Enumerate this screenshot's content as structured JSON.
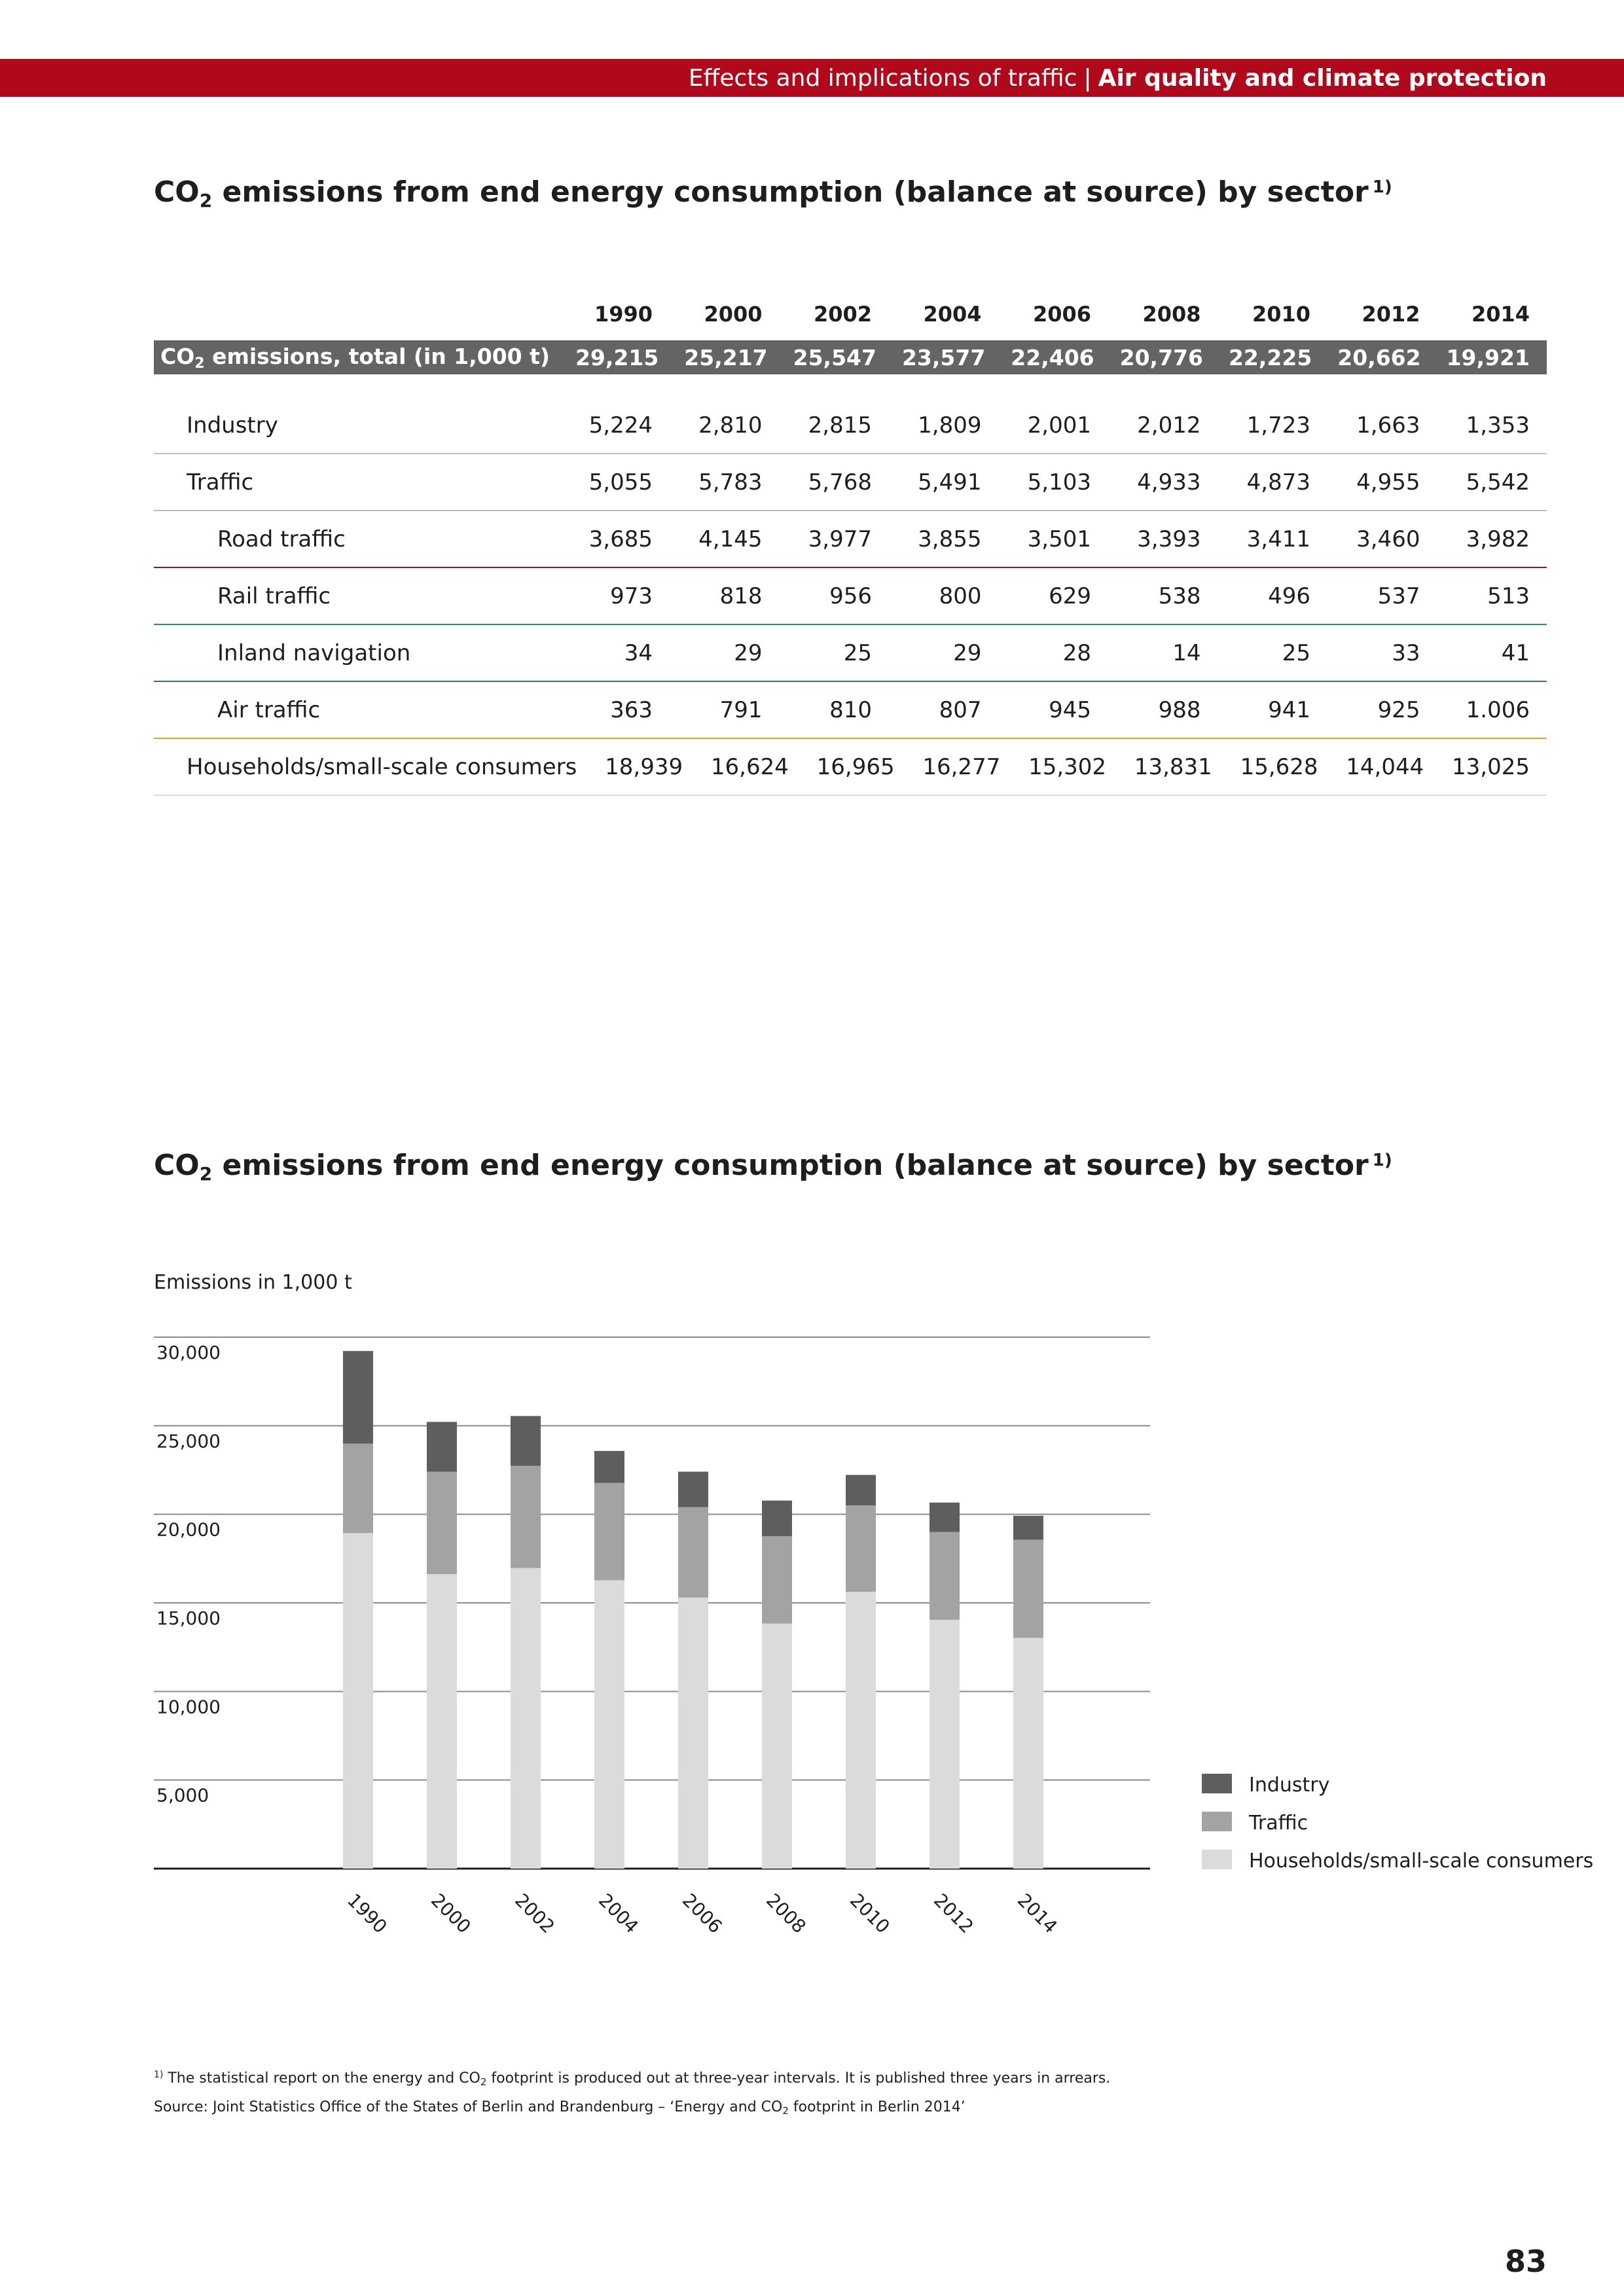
{
  "header": {
    "section": "Effects and implications of traffic",
    "separator": "|",
    "subsection": "Air quality and climate protection"
  },
  "table_section": {
    "title_pre": "CO",
    "title_sub": "2",
    "title_post": " emissions from end energy consumption (balance at source) by sector",
    "title_note": "1)",
    "years": [
      "1990",
      "2000",
      "2002",
      "2004",
      "2006",
      "2008",
      "2010",
      "2012",
      "2014"
    ],
    "total": {
      "label_pre": "CO",
      "label_sub": "2",
      "label_post": " emissions, total (in 1,000 t)",
      "values": [
        "29,215",
        "25,217",
        "25,547",
        "23,577",
        "22,406",
        "20,776",
        "22,225",
        "20,662",
        "19,921"
      ]
    },
    "rows": [
      {
        "label": "Industry",
        "values": [
          "5,224",
          "2,810",
          "2,815",
          "1,809",
          "2,001",
          "2,012",
          "1,723",
          "1,663",
          "1,353"
        ]
      },
      {
        "label": "Traffic",
        "values": [
          "5,055",
          "5,783",
          "5,768",
          "5,491",
          "5,103",
          "4,933",
          "4,873",
          "4,955",
          "5,542"
        ]
      },
      {
        "label": "Road traffic",
        "values": [
          "3,685",
          "4,145",
          "3,977",
          "3,855",
          "3,501",
          "3,393",
          "3,411",
          "3,460",
          "3,982"
        ]
      },
      {
        "label": "Rail traffic",
        "values": [
          "973",
          "818",
          "956",
          "800",
          "629",
          "538",
          "496",
          "537",
          "513"
        ]
      },
      {
        "label": "Inland navigation",
        "values": [
          "34",
          "29",
          "25",
          "29",
          "28",
          "14",
          "25",
          "33",
          "41"
        ]
      },
      {
        "label": "Air traffic",
        "values": [
          "363",
          "791",
          "810",
          "807",
          "945",
          "988",
          "941",
          "925",
          "1.006"
        ]
      },
      {
        "label": "Households/small-scale consumers",
        "values": [
          "18,939",
          "16,624",
          "16,965",
          "16,277",
          "15,302",
          "13,831",
          "15,628",
          "14,044",
          "13,025"
        ]
      }
    ]
  },
  "chart_section": {
    "title_pre": "CO",
    "title_sub": "2",
    "title_post": " emissions from end energy consumption (balance at source) by sector",
    "title_note": "1)",
    "y_unit_label": "Emissions in 1,000 t"
  },
  "chart_data": {
    "type": "bar",
    "stacked": true,
    "categories": [
      "1990",
      "2000",
      "2002",
      "2004",
      "2006",
      "2008",
      "2010",
      "2012",
      "2014"
    ],
    "series": [
      {
        "name": "Households/small-scale consumers",
        "values": [
          18939,
          16624,
          16965,
          16277,
          15302,
          13831,
          15628,
          14044,
          13025
        ]
      },
      {
        "name": "Traffic",
        "values": [
          5055,
          5783,
          5768,
          5491,
          5103,
          4933,
          4873,
          4955,
          5542
        ]
      },
      {
        "name": "Industry",
        "values": [
          5224,
          2810,
          2815,
          1809,
          2001,
          2012,
          1723,
          1663,
          1353
        ]
      }
    ],
    "ylabel": "Emissions in 1,000 t",
    "ylim": [
      0,
      30000
    ],
    "yticks": [
      5000,
      10000,
      15000,
      20000,
      25000,
      30000
    ],
    "ytick_labels": [
      "5,000",
      "10,000",
      "15,000",
      "20,000",
      "25,000",
      "30,000"
    ],
    "grid": true,
    "legend": {
      "placement": "right",
      "order": [
        "Industry",
        "Traffic",
        "Households/small-scale consumers"
      ]
    },
    "colors": {
      "Industry": "#5e5e5e",
      "Traffic": "#a3a3a3",
      "Households/small-scale consumers": "#dbdbdb"
    }
  },
  "footnotes": {
    "note1_mark": "1)",
    "note1_pre": " The statistical report on the energy and CO",
    "note1_sub": "2",
    "note1_post": " footprint is produced out at three-year intervals. It is published three years in arrears.",
    "source_pre": "Source: Joint Statistics Office of the States of Berlin and Brandenburg – ‘Energy and CO",
    "source_sub": "2",
    "source_post": " footprint in Berlin 2014’"
  },
  "page_number": "83",
  "colors": {
    "accent": "#b0091c",
    "total_row": "#646464"
  }
}
